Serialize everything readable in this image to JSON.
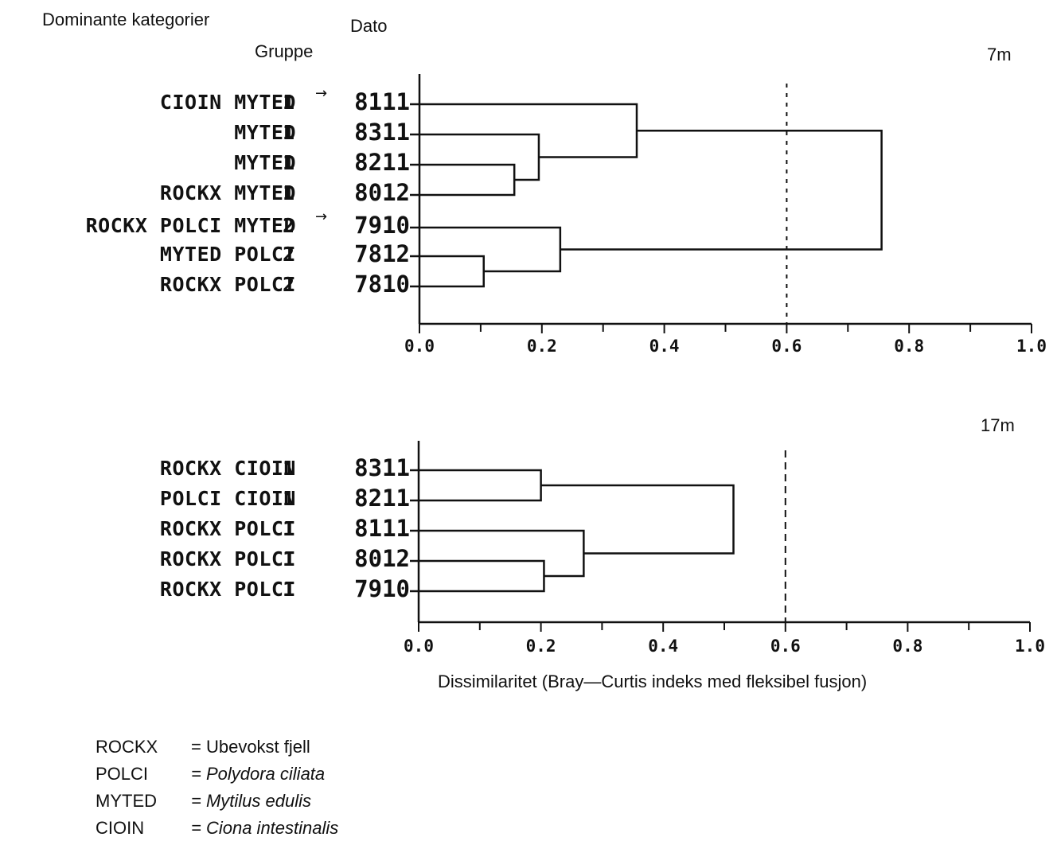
{
  "header": {
    "dominant": "Dominante kategorier",
    "date": "Dato",
    "group": "Gruppe"
  },
  "xaxis": {
    "ticks": [
      "0.0",
      "0.2",
      "0.4",
      "0.6",
      "0.8",
      "1.0"
    ],
    "label": "Dissimilaritet (Bray—Curtis indeks med fleksibel fusjon)"
  },
  "panels": [
    {
      "depth": "7m",
      "cutoff": 0.6,
      "rows": [
        {
          "categories": "CIOIN MYTED",
          "group": "1",
          "date": "8111",
          "arrow": true
        },
        {
          "categories": "MYTED",
          "group": "1",
          "date": "8311",
          "arrow": false
        },
        {
          "categories": "MYTED",
          "group": "1",
          "date": "8211",
          "arrow": false
        },
        {
          "categories": "ROCKX MYTED",
          "group": "1",
          "date": "8012",
          "arrow": false
        },
        {
          "categories": "ROCKX POLCI MYTED",
          "group": "2",
          "date": "7910",
          "arrow": true
        },
        {
          "categories": "MYTED POLCI",
          "group": "2",
          "date": "7812",
          "arrow": false
        },
        {
          "categories": "ROCKX POLCI",
          "group": "2",
          "date": "7810",
          "arrow": false
        }
      ],
      "merges": [
        {
          "a": 2,
          "b": 3,
          "h": 0.155
        },
        {
          "a": 5,
          "b": 6,
          "h": 0.105
        },
        {
          "a": 1,
          "b": "m0",
          "h": 0.195
        },
        {
          "a": 0,
          "b": "m2",
          "h": 0.355
        },
        {
          "a": 4,
          "b": "m1",
          "h": 0.23
        },
        {
          "a": "m3",
          "b": "m4",
          "h": 0.755
        }
      ]
    },
    {
      "depth": "17m",
      "cutoff": 0.6,
      "rows": [
        {
          "categories": "ROCKX CIOIN",
          "group": "1",
          "date": "8311",
          "arrow": false
        },
        {
          "categories": "POLCI CIOIN",
          "group": "1",
          "date": "8211",
          "arrow": false
        },
        {
          "categories": "ROCKX POLCI",
          "group": "1",
          "date": "8111",
          "arrow": false
        },
        {
          "categories": "ROCKX POLCI",
          "group": "1",
          "date": "8012",
          "arrow": false
        },
        {
          "categories": "ROCKX POLCI",
          "group": "1",
          "date": "7910",
          "arrow": false
        }
      ],
      "merges": [
        {
          "a": 0,
          "b": 1,
          "h": 0.2
        },
        {
          "a": 3,
          "b": 4,
          "h": 0.205
        },
        {
          "a": 2,
          "b": "m1",
          "h": 0.27
        },
        {
          "a": "m0",
          "b": "m2",
          "h": 0.515
        }
      ]
    }
  ],
  "legend": [
    {
      "code": "ROCKX",
      "definition": "= Ubevokst fjell",
      "italic": false
    },
    {
      "code": "POLCI",
      "definition": "= Polydora ciliata",
      "italic": true
    },
    {
      "code": "MYTED",
      "definition": "= Mytilus edulis",
      "italic": true
    },
    {
      "code": "CIOIN",
      "definition": "= Ciona intestinalis",
      "italic": true
    }
  ]
}
